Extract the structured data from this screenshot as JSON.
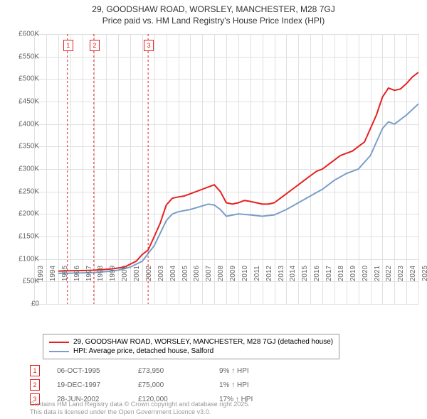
{
  "title_line1": "29, GOODSHAW ROAD, WORSLEY, MANCHESTER, M28 7GJ",
  "title_line2": "Price paid vs. HM Land Registry's House Price Index (HPI)",
  "chart": {
    "type": "line",
    "background_color": "#ffffff",
    "grid_color": "#e0e0e0",
    "axis_font_size": 10,
    "x_years": [
      1993,
      1994,
      1995,
      1996,
      1997,
      1998,
      1999,
      2000,
      2001,
      2002,
      2003,
      2004,
      2005,
      2006,
      2007,
      2008,
      2009,
      2010,
      2011,
      2012,
      2013,
      2014,
      2015,
      2016,
      2017,
      2018,
      2019,
      2020,
      2021,
      2022,
      2023,
      2024,
      2025
    ],
    "ylim": [
      0,
      600000
    ],
    "ytick_step": 50000,
    "ytick_labels": [
      "£0",
      "£50K",
      "£100K",
      "£150K",
      "£200K",
      "£250K",
      "£300K",
      "£350K",
      "£400K",
      "£450K",
      "£500K",
      "£550K",
      "£600K"
    ],
    "series": [
      {
        "name": "29, GOODSHAW ROAD, WORSLEY, MANCHESTER, M28 7GJ (detached house)",
        "color": "#e62020",
        "line_width": 2,
        "data": [
          [
            1995.0,
            73000
          ],
          [
            1995.8,
            73950
          ],
          [
            1996.5,
            74000
          ],
          [
            1997.5,
            74500
          ],
          [
            1997.97,
            75000
          ],
          [
            1998.5,
            76000
          ],
          [
            1999.5,
            78000
          ],
          [
            2000.5,
            82000
          ],
          [
            2001.5,
            95000
          ],
          [
            2002.0,
            110000
          ],
          [
            2002.49,
            120000
          ],
          [
            2003.0,
            150000
          ],
          [
            2003.5,
            180000
          ],
          [
            2004.0,
            220000
          ],
          [
            2004.5,
            235000
          ],
          [
            2005.0,
            238000
          ],
          [
            2005.5,
            240000
          ],
          [
            2006.0,
            245000
          ],
          [
            2006.5,
            250000
          ],
          [
            2007.0,
            255000
          ],
          [
            2007.5,
            260000
          ],
          [
            2008.0,
            265000
          ],
          [
            2008.5,
            250000
          ],
          [
            2009.0,
            225000
          ],
          [
            2009.5,
            222000
          ],
          [
            2010.0,
            225000
          ],
          [
            2010.5,
            230000
          ],
          [
            2011.0,
            228000
          ],
          [
            2011.5,
            225000
          ],
          [
            2012.0,
            222000
          ],
          [
            2012.5,
            222000
          ],
          [
            2013.0,
            225000
          ],
          [
            2013.5,
            235000
          ],
          [
            2014.0,
            245000
          ],
          [
            2014.5,
            255000
          ],
          [
            2015.0,
            265000
          ],
          [
            2015.5,
            275000
          ],
          [
            2016.0,
            285000
          ],
          [
            2016.5,
            295000
          ],
          [
            2017.0,
            300000
          ],
          [
            2017.5,
            310000
          ],
          [
            2018.0,
            320000
          ],
          [
            2018.5,
            330000
          ],
          [
            2019.0,
            335000
          ],
          [
            2019.5,
            340000
          ],
          [
            2020.0,
            350000
          ],
          [
            2020.5,
            360000
          ],
          [
            2021.0,
            390000
          ],
          [
            2021.5,
            420000
          ],
          [
            2022.0,
            460000
          ],
          [
            2022.5,
            480000
          ],
          [
            2023.0,
            475000
          ],
          [
            2023.5,
            478000
          ],
          [
            2024.0,
            490000
          ],
          [
            2024.5,
            505000
          ],
          [
            2025.0,
            515000
          ]
        ]
      },
      {
        "name": "HPI: Average price, detached house, Salford",
        "color": "#7a9ec9",
        "line_width": 2,
        "data": [
          [
            1995.0,
            68000
          ],
          [
            1996.0,
            68500
          ],
          [
            1997.0,
            69000
          ],
          [
            1998.0,
            70000
          ],
          [
            1999.0,
            72000
          ],
          [
            2000.0,
            75000
          ],
          [
            2001.0,
            82000
          ],
          [
            2002.0,
            95000
          ],
          [
            2003.0,
            130000
          ],
          [
            2004.0,
            185000
          ],
          [
            2004.5,
            200000
          ],
          [
            2005.0,
            205000
          ],
          [
            2006.0,
            210000
          ],
          [
            2007.0,
            218000
          ],
          [
            2007.5,
            222000
          ],
          [
            2008.0,
            220000
          ],
          [
            2008.5,
            210000
          ],
          [
            2009.0,
            195000
          ],
          [
            2010.0,
            200000
          ],
          [
            2011.0,
            198000
          ],
          [
            2012.0,
            195000
          ],
          [
            2013.0,
            198000
          ],
          [
            2014.0,
            210000
          ],
          [
            2015.0,
            225000
          ],
          [
            2016.0,
            240000
          ],
          [
            2017.0,
            255000
          ],
          [
            2018.0,
            275000
          ],
          [
            2019.0,
            290000
          ],
          [
            2020.0,
            300000
          ],
          [
            2021.0,
            330000
          ],
          [
            2022.0,
            390000
          ],
          [
            2022.5,
            405000
          ],
          [
            2023.0,
            400000
          ],
          [
            2024.0,
            420000
          ],
          [
            2025.0,
            445000
          ]
        ]
      }
    ],
    "sale_markers": [
      {
        "n": "1",
        "x": 1995.77,
        "color": "#e62020"
      },
      {
        "n": "2",
        "x": 1997.97,
        "color": "#e62020"
      },
      {
        "n": "3",
        "x": 2002.49,
        "color": "#e62020"
      }
    ]
  },
  "legend": {
    "items": [
      {
        "color": "#e62020",
        "label": "29, GOODSHAW ROAD, WORSLEY, MANCHESTER, M28 7GJ (detached house)"
      },
      {
        "color": "#7a9ec9",
        "label": "HPI: Average price, detached house, Salford"
      }
    ]
  },
  "sales": [
    {
      "n": "1",
      "color": "#e62020",
      "date": "06-OCT-1995",
      "price": "£73,950",
      "delta": "9% ↑ HPI"
    },
    {
      "n": "2",
      "color": "#e62020",
      "date": "19-DEC-1997",
      "price": "£75,000",
      "delta": "1% ↑ HPI"
    },
    {
      "n": "3",
      "color": "#e62020",
      "date": "28-JUN-2002",
      "price": "£120,000",
      "delta": "17% ↑ HPI"
    }
  ],
  "attribution_line1": "Contains HM Land Registry data © Crown copyright and database right 2025.",
  "attribution_line2": "This data is licensed under the Open Government Licence v3.0."
}
